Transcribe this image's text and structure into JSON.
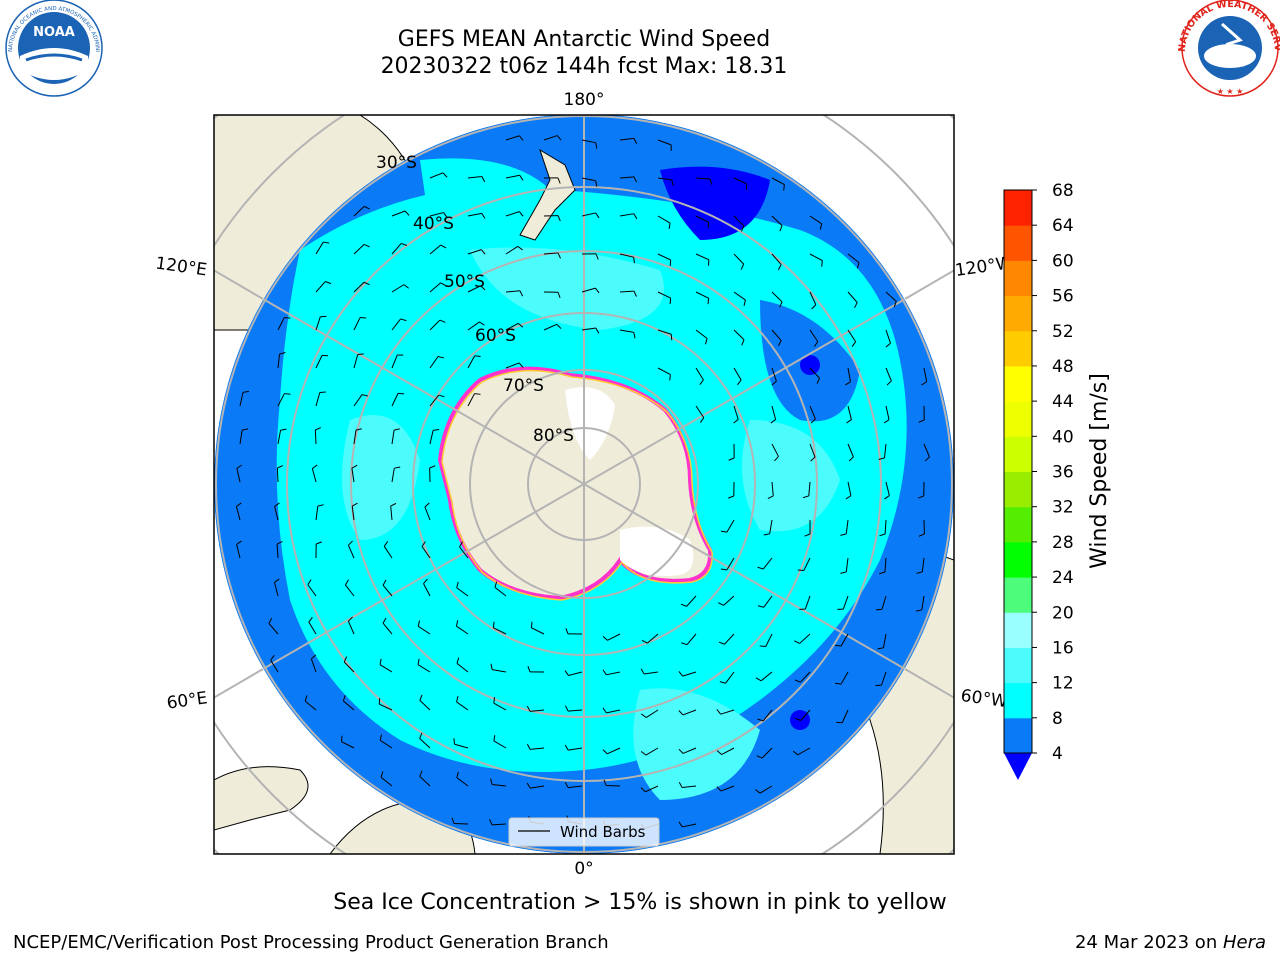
{
  "title": {
    "line1": "GEFS MEAN Antarctic Wind Speed",
    "line2": "20230322 t06z 144h fcst   Max: 18.31"
  },
  "logos": {
    "left": {
      "name": "noaa-logo",
      "text": "NOAA",
      "ring_text": "NATIONAL OCEANIC AND ATMOSPHERIC ADMINISTRATION · U.S. DEPARTMENT OF COMMERCE",
      "color": "#1a63b5"
    },
    "right": {
      "name": "nws-logo",
      "ring_text": "NATIONAL WEATHER SERVICE",
      "color": "#e0241b"
    }
  },
  "map": {
    "projection": "south-polar-stereographic",
    "longitude_labels": {
      "top": "180°",
      "bottom": "0°",
      "left_upper": "120°E",
      "left_lower": "60°E",
      "right_upper": "120°W",
      "right_lower": "60°W"
    },
    "latitude_labels": [
      "30°S",
      "40°S",
      "50°S",
      "60°S",
      "70°S",
      "80°S"
    ],
    "legend": {
      "label": "Wind Barbs"
    },
    "colors": {
      "land": "#efedda",
      "ocean_4_8": "#0a7af7",
      "ocean_8_12": "#00ffff",
      "ocean_12_16": "#4cfcfd",
      "ice_edge": "#ff33cc",
      "ice_edge_inner": "#ffcc33"
    }
  },
  "colorbar": {
    "label": "Wind Speed [m/s]",
    "ticks": [
      "68",
      "64",
      "60",
      "56",
      "52",
      "48",
      "44",
      "40",
      "36",
      "32",
      "28",
      "24",
      "20",
      "16",
      "12",
      "8",
      "4"
    ],
    "colors": [
      "#0000ff",
      "#0a7af7",
      "#00ffff",
      "#4cfcfd",
      "#99ffff",
      "#4cfc7a",
      "#00ff00",
      "#55ee00",
      "#99ee00",
      "#ccff00",
      "#eeff00",
      "#ffff00",
      "#ffcc00",
      "#ffaa00",
      "#ff8800",
      "#ff5500",
      "#ff2200",
      "#ff0000"
    ]
  },
  "caption": "Sea Ice Concentration > 15% is shown in pink to yellow",
  "footer": {
    "left": "NCEP/EMC/Verification Post Processing Product Generation Branch",
    "right_date": "24 Mar 2023 on ",
    "right_host": "Hera"
  }
}
